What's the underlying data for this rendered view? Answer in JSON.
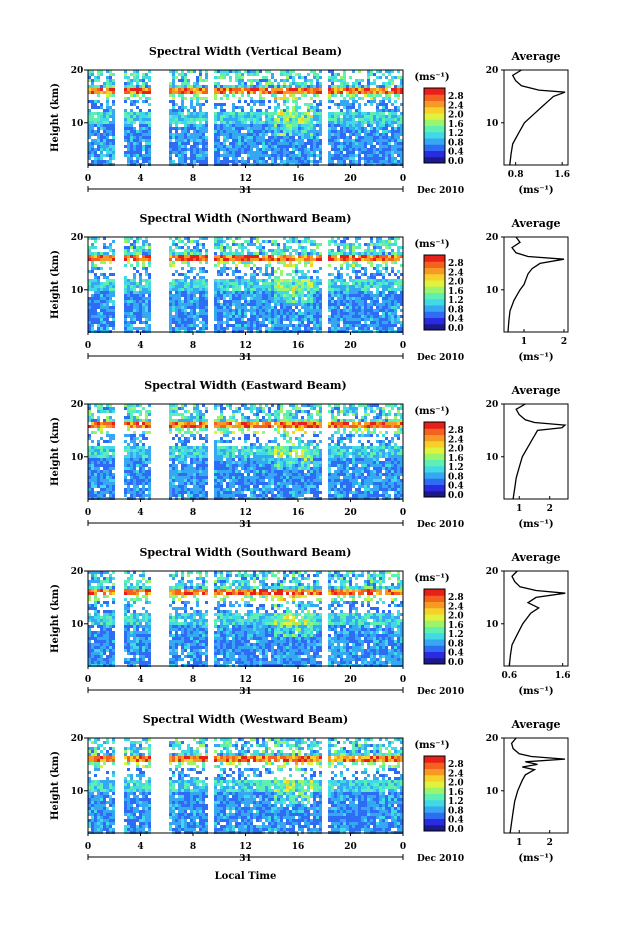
{
  "figure": {
    "xlabel": "Local Time",
    "date_label": "Dec 2010",
    "day_label": "31",
    "ylabel": "Height (km)",
    "avg_title": "Average",
    "avg_xlabel": "(ms⁻¹)",
    "colorbar_unit": "(ms⁻¹)",
    "colorbar_ticks": [
      "2.8",
      "2.4",
      "2.0",
      "1.6",
      "1.2",
      "0.8",
      "0.4",
      "0.0"
    ],
    "x_ticks": [
      "0",
      "4",
      "8",
      "12",
      "16",
      "20",
      "0"
    ],
    "y_ticks": [
      "20",
      "10"
    ],
    "colors": [
      "#1a1a8c",
      "#2a2ae0",
      "#2f6cf5",
      "#35a7f3",
      "#41d9e6",
      "#5ef0b3",
      "#9af56c",
      "#dff23d",
      "#f7d02a",
      "#f79a25",
      "#f5611f",
      "#e8201a"
    ]
  },
  "chart_data": [
    {
      "type": "heatmap",
      "title": "Spectral Width (Vertical Beam)",
      "avg_xticks": [
        "0.8",
        "1.6"
      ],
      "avg_xlim": [
        0.6,
        1.7
      ],
      "x": "Local Time (h)",
      "xlim": [
        0,
        24
      ],
      "ylim": [
        2,
        20
      ],
      "data_gaps_hours": [
        [
          2.0,
          2.6
        ],
        [
          4.6,
          6.0
        ],
        [
          9.0,
          9.5
        ],
        [
          17.6,
          18.1
        ]
      ],
      "average_profile": {
        "height_km": [
          2,
          4,
          6,
          8,
          10,
          12,
          13,
          14,
          15,
          15.8,
          16.2,
          17,
          18,
          19,
          20
        ],
        "value": [
          0.7,
          0.72,
          0.75,
          0.85,
          0.95,
          1.15,
          1.25,
          1.35,
          1.45,
          1.65,
          1.2,
          0.9,
          0.8,
          0.75,
          0.9
        ]
      }
    },
    {
      "type": "heatmap",
      "title": "Spectral Width (Northward Beam)",
      "avg_xticks": [
        "1",
        "2"
      ],
      "avg_xlim": [
        0.5,
        2.1
      ],
      "x": "Local Time (h)",
      "xlim": [
        0,
        24
      ],
      "ylim": [
        2,
        20
      ],
      "data_gaps_hours": [
        [
          2.0,
          2.6
        ],
        [
          4.6,
          6.0
        ],
        [
          9.0,
          9.5
        ],
        [
          17.6,
          18.1
        ]
      ],
      "average_profile": {
        "height_km": [
          2,
          4,
          6,
          8,
          10,
          11,
          12,
          13,
          14,
          15,
          15.8,
          16.3,
          17,
          18,
          19,
          20
        ],
        "value": [
          0.6,
          0.62,
          0.65,
          0.75,
          0.9,
          1.0,
          1.05,
          1.1,
          1.2,
          1.4,
          2.0,
          1.1,
          0.8,
          0.7,
          0.9,
          0.8
        ]
      }
    },
    {
      "type": "heatmap",
      "title": "Spectral Width (Eastward Beam)",
      "avg_xticks": [
        "1",
        "2"
      ],
      "avg_xlim": [
        0.5,
        2.6
      ],
      "x": "Local Time (h)",
      "xlim": [
        0,
        24
      ],
      "ylim": [
        2,
        20
      ],
      "data_gaps_hours": [
        [
          2.0,
          2.6
        ],
        [
          4.6,
          6.0
        ],
        [
          9.0,
          9.5
        ],
        [
          17.6,
          18.1
        ]
      ],
      "average_profile": {
        "height_km": [
          2,
          4,
          6,
          8,
          10,
          12,
          13,
          14,
          15,
          15.5,
          16,
          16.5,
          17,
          18,
          19,
          20
        ],
        "value": [
          0.8,
          0.85,
          0.9,
          1.0,
          1.1,
          1.3,
          1.4,
          1.5,
          1.6,
          2.4,
          2.5,
          1.5,
          1.2,
          1.0,
          0.9,
          1.2
        ]
      }
    },
    {
      "type": "heatmap",
      "title": "Spectral Width (Southward Beam)",
      "avg_xticks": [
        "0.6",
        "1.6"
      ],
      "avg_xlim": [
        0.5,
        1.7
      ],
      "x": "Local Time (h)",
      "xlim": [
        0,
        24
      ],
      "ylim": [
        2,
        20
      ],
      "data_gaps_hours": [
        [
          2.0,
          2.6
        ],
        [
          4.6,
          6.0
        ],
        [
          9.0,
          9.5
        ],
        [
          17.6,
          18.1
        ]
      ],
      "average_profile": {
        "height_km": [
          2,
          4,
          6,
          8,
          10,
          12,
          13,
          14,
          15,
          15.8,
          16.3,
          17,
          18,
          19,
          20
        ],
        "value": [
          0.6,
          0.62,
          0.65,
          0.75,
          0.85,
          1.0,
          1.15,
          0.95,
          1.1,
          1.65,
          1.1,
          0.8,
          0.7,
          0.65,
          0.75
        ]
      }
    },
    {
      "type": "heatmap",
      "title": "Spectral Width (Westward Beam)",
      "avg_xticks": [
        "1",
        "2"
      ],
      "avg_xlim": [
        0.5,
        2.6
      ],
      "x": "Local Time (h)",
      "xlim": [
        0,
        24
      ],
      "ylim": [
        2,
        20
      ],
      "data_gaps_hours": [
        [
          2.0,
          2.6
        ],
        [
          4.6,
          6.0
        ],
        [
          9.0,
          9.5
        ],
        [
          17.6,
          18.1
        ]
      ],
      "average_profile": {
        "height_km": [
          2,
          4,
          6,
          8,
          10,
          12,
          13,
          14,
          14.5,
          15,
          15.5,
          16,
          16.5,
          17,
          18,
          19,
          20
        ],
        "value": [
          0.7,
          0.75,
          0.8,
          0.85,
          0.95,
          1.1,
          1.2,
          1.5,
          1.1,
          1.6,
          1.2,
          2.5,
          1.4,
          1.0,
          0.8,
          0.75,
          0.9
        ]
      }
    }
  ]
}
